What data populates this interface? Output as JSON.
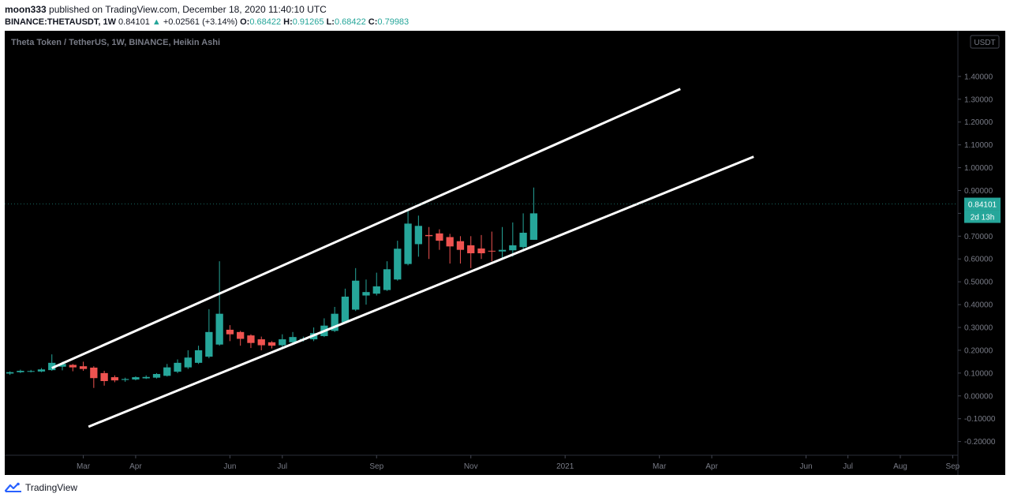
{
  "header": {
    "author": "moon333",
    "published_text": "published on TradingView.com, December 18, 2020 11:40:10 UTC",
    "symbol": "BINANCE:THETAUSDT",
    "interval": "1W",
    "last": "0.84101",
    "change_arrow": "▲",
    "change": "+0.02561 (+3.14%)",
    "o_label": "O:",
    "o_value": "0.68422",
    "h_label": "H:",
    "h_value": "0.91265",
    "l_label": "L:",
    "l_value": "0.68422",
    "c_label": "C:",
    "c_value": "0.79983"
  },
  "footer": {
    "brand": "TradingView",
    "icon": "tradingview-logo-icon"
  },
  "colors": {
    "background": "#000000",
    "up": "#26a69a",
    "down": "#ef5350",
    "trendline": "#ffffff",
    "axis_text": "#787b86"
  },
  "chart_data": {
    "type": "candlestick",
    "subtype": "Heikin Ashi",
    "title": "Theta Token / TetherUS, 1W, BINANCE, Heikin Ashi",
    "currency_badge": "USDT",
    "price_label": "0.84101",
    "countdown_label": "2d 13h",
    "ylim": [
      -0.26,
      1.6
    ],
    "y_ticks": [
      1.4,
      1.3,
      1.2,
      1.1,
      1.0,
      0.9,
      0.8,
      0.7,
      0.6,
      0.5,
      0.4,
      0.3,
      0.2,
      0.1,
      0.0,
      -0.1,
      -0.2
    ],
    "y_tick_labels": [
      "1.40000",
      "1.30000",
      "1.20000",
      "1.10000",
      "1.00000",
      "0.90000",
      "0.80000",
      "0.70000",
      "0.60000",
      "0.50000",
      "0.40000",
      "0.30000",
      "0.20000",
      "0.10000",
      "0.00000",
      "-0.10000",
      "-0.20000"
    ],
    "x_ticks": [
      {
        "label": "Mar",
        "week": 7
      },
      {
        "label": "Apr",
        "week": 12
      },
      {
        "label": "Jun",
        "week": 21
      },
      {
        "label": "Jul",
        "week": 26
      },
      {
        "label": "Sep",
        "week": 35
      },
      {
        "label": "Nov",
        "week": 44
      },
      {
        "label": "2021",
        "week": 53
      },
      {
        "label": "Mar",
        "week": 62
      },
      {
        "label": "Apr",
        "week": 67
      },
      {
        "label": "Jun",
        "week": 76
      },
      {
        "label": "Jul",
        "week": 80
      },
      {
        "label": "Aug",
        "week": 85
      },
      {
        "label": "Sep",
        "week": 90
      }
    ],
    "xlim": [
      -0.5,
      90.5
    ],
    "candles": [
      {
        "week": 0,
        "o": 0.098,
        "h": 0.108,
        "l": 0.092,
        "c": 0.104
      },
      {
        "week": 1,
        "o": 0.104,
        "h": 0.115,
        "l": 0.1,
        "c": 0.11
      },
      {
        "week": 2,
        "o": 0.108,
        "h": 0.114,
        "l": 0.103,
        "c": 0.109
      },
      {
        "week": 3,
        "o": 0.107,
        "h": 0.122,
        "l": 0.104,
        "c": 0.116
      },
      {
        "week": 4,
        "o": 0.113,
        "h": 0.182,
        "l": 0.11,
        "c": 0.145
      },
      {
        "week": 5,
        "o": 0.128,
        "h": 0.15,
        "l": 0.112,
        "c": 0.14
      },
      {
        "week": 6,
        "o": 0.136,
        "h": 0.14,
        "l": 0.108,
        "c": 0.125
      },
      {
        "week": 7,
        "o": 0.13,
        "h": 0.15,
        "l": 0.11,
        "c": 0.118
      },
      {
        "week": 8,
        "o": 0.124,
        "h": 0.13,
        "l": 0.035,
        "c": 0.078
      },
      {
        "week": 9,
        "o": 0.1,
        "h": 0.11,
        "l": 0.045,
        "c": 0.065
      },
      {
        "week": 10,
        "o": 0.082,
        "h": 0.09,
        "l": 0.06,
        "c": 0.068
      },
      {
        "week": 11,
        "o": 0.07,
        "h": 0.08,
        "l": 0.062,
        "c": 0.074
      },
      {
        "week": 12,
        "o": 0.072,
        "h": 0.086,
        "l": 0.068,
        "c": 0.082
      },
      {
        "week": 13,
        "o": 0.077,
        "h": 0.09,
        "l": 0.074,
        "c": 0.083
      },
      {
        "week": 14,
        "o": 0.08,
        "h": 0.1,
        "l": 0.076,
        "c": 0.096
      },
      {
        "week": 15,
        "o": 0.088,
        "h": 0.14,
        "l": 0.085,
        "c": 0.125
      },
      {
        "week": 16,
        "o": 0.106,
        "h": 0.16,
        "l": 0.1,
        "c": 0.145
      },
      {
        "week": 17,
        "o": 0.125,
        "h": 0.2,
        "l": 0.118,
        "c": 0.168
      },
      {
        "week": 18,
        "o": 0.145,
        "h": 0.22,
        "l": 0.14,
        "c": 0.2
      },
      {
        "week": 19,
        "o": 0.172,
        "h": 0.38,
        "l": 0.165,
        "c": 0.28
      },
      {
        "week": 20,
        "o": 0.225,
        "h": 0.59,
        "l": 0.22,
        "c": 0.36
      },
      {
        "week": 21,
        "o": 0.29,
        "h": 0.31,
        "l": 0.24,
        "c": 0.27
      },
      {
        "week": 22,
        "o": 0.28,
        "h": 0.285,
        "l": 0.22,
        "c": 0.25
      },
      {
        "week": 23,
        "o": 0.265,
        "h": 0.27,
        "l": 0.21,
        "c": 0.232
      },
      {
        "week": 24,
        "o": 0.248,
        "h": 0.26,
        "l": 0.2,
        "c": 0.222
      },
      {
        "week": 25,
        "o": 0.235,
        "h": 0.24,
        "l": 0.208,
        "c": 0.22
      },
      {
        "week": 26,
        "o": 0.222,
        "h": 0.27,
        "l": 0.215,
        "c": 0.248
      },
      {
        "week": 27,
        "o": 0.235,
        "h": 0.28,
        "l": 0.23,
        "c": 0.258
      },
      {
        "week": 28,
        "o": 0.246,
        "h": 0.26,
        "l": 0.238,
        "c": 0.25
      },
      {
        "week": 29,
        "o": 0.248,
        "h": 0.3,
        "l": 0.24,
        "c": 0.275
      },
      {
        "week": 30,
        "o": 0.262,
        "h": 0.34,
        "l": 0.258,
        "c": 0.308
      },
      {
        "week": 31,
        "o": 0.285,
        "h": 0.39,
        "l": 0.28,
        "c": 0.36
      },
      {
        "week": 32,
        "o": 0.322,
        "h": 0.47,
        "l": 0.318,
        "c": 0.435
      },
      {
        "week": 33,
        "o": 0.378,
        "h": 0.56,
        "l": 0.372,
        "c": 0.505
      },
      {
        "week": 34,
        "o": 0.44,
        "h": 0.51,
        "l": 0.4,
        "c": 0.455
      },
      {
        "week": 35,
        "o": 0.448,
        "h": 0.54,
        "l": 0.44,
        "c": 0.48
      },
      {
        "week": 36,
        "o": 0.464,
        "h": 0.59,
        "l": 0.46,
        "c": 0.555
      },
      {
        "week": 37,
        "o": 0.51,
        "h": 0.68,
        "l": 0.505,
        "c": 0.645
      },
      {
        "week": 38,
        "o": 0.578,
        "h": 0.81,
        "l": 0.572,
        "c": 0.755
      },
      {
        "week": 39,
        "o": 0.665,
        "h": 0.79,
        "l": 0.61,
        "c": 0.745
      },
      {
        "week": 40,
        "o": 0.705,
        "h": 0.74,
        "l": 0.6,
        "c": 0.7
      },
      {
        "week": 41,
        "o": 0.712,
        "h": 0.73,
        "l": 0.64,
        "c": 0.68
      },
      {
        "week": 42,
        "o": 0.696,
        "h": 0.71,
        "l": 0.58,
        "c": 0.655
      },
      {
        "week": 43,
        "o": 0.678,
        "h": 0.7,
        "l": 0.58,
        "c": 0.64
      },
      {
        "week": 44,
        "o": 0.66,
        "h": 0.7,
        "l": 0.56,
        "c": 0.625
      },
      {
        "week": 45,
        "o": 0.646,
        "h": 0.705,
        "l": 0.6,
        "c": 0.625
      },
      {
        "week": 46,
        "o": 0.636,
        "h": 0.72,
        "l": 0.59,
        "c": 0.635
      },
      {
        "week": 47,
        "o": 0.633,
        "h": 0.74,
        "l": 0.605,
        "c": 0.64
      },
      {
        "week": 48,
        "o": 0.638,
        "h": 0.76,
        "l": 0.61,
        "c": 0.66
      },
      {
        "week": 49,
        "o": 0.652,
        "h": 0.8,
        "l": 0.635,
        "c": 0.715
      },
      {
        "week": 50,
        "o": 0.684,
        "h": 0.913,
        "l": 0.684,
        "c": 0.8
      }
    ],
    "trendlines": [
      {
        "name": "upper-channel",
        "x1": 4,
        "y1": 0.122,
        "x2": 64,
        "y2": 1.345
      },
      {
        "name": "lower-channel",
        "x1": 7.5,
        "y1": -0.135,
        "x2": 71,
        "y2": 1.048
      }
    ]
  }
}
